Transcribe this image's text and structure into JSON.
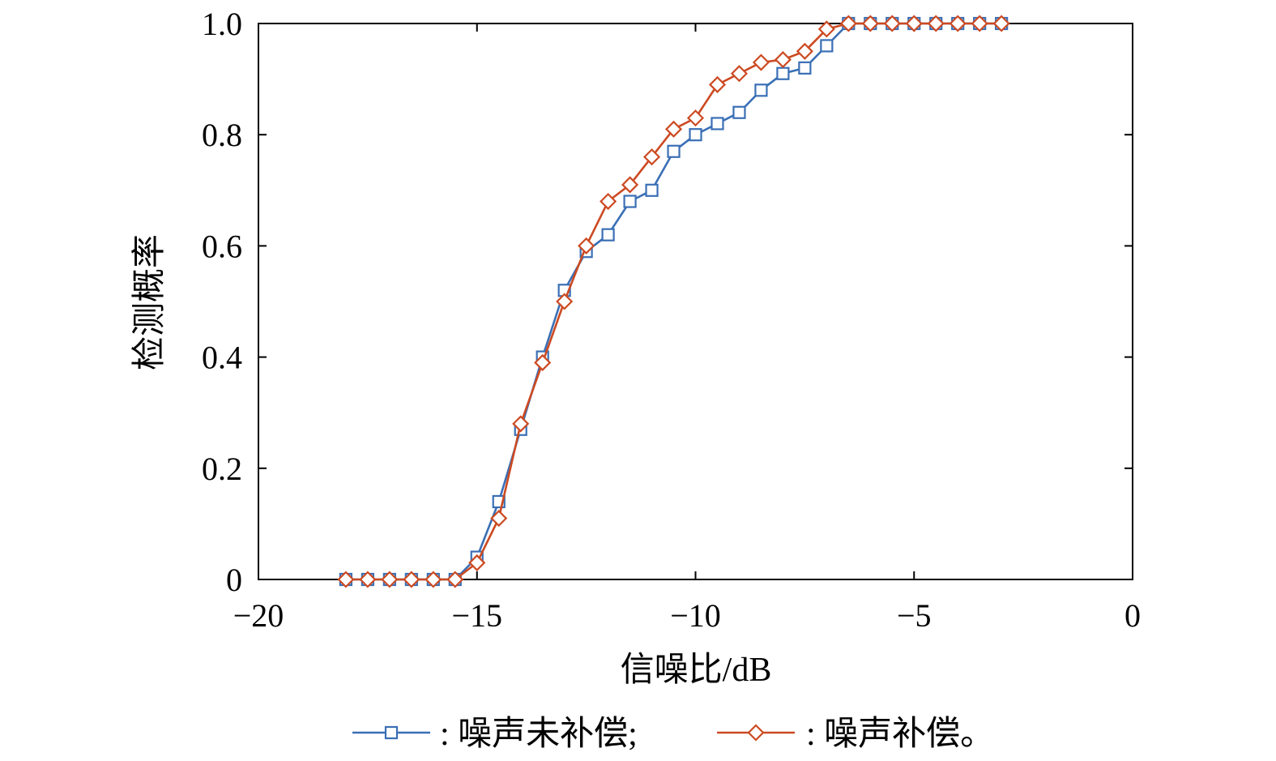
{
  "chart_data": {
    "type": "line",
    "xlabel": "信噪比/dB",
    "ylabel": "检测概率",
    "xlim": [
      -20,
      0
    ],
    "ylim": [
      0,
      1.0
    ],
    "x_ticks": [
      -20,
      -15,
      -10,
      -5,
      0
    ],
    "x_tick_labels": [
      "−20",
      "−15",
      "−10",
      "−5",
      "0"
    ],
    "y_ticks": [
      0,
      0.2,
      0.4,
      0.6,
      0.8,
      1.0
    ],
    "y_tick_labels": [
      "0",
      "0.2",
      "0.4",
      "0.6",
      "0.8",
      "1.0"
    ],
    "grid": false,
    "legend_position": "bottom",
    "x": [
      -18,
      -17.5,
      -17,
      -16.5,
      -16,
      -15.5,
      -15,
      -14.5,
      -14,
      -13.5,
      -13,
      -12.5,
      -12,
      -11.5,
      -11,
      -10.5,
      -10,
      -9.5,
      -9,
      -8.5,
      -8,
      -7.5,
      -7,
      -6.5,
      -6,
      -5.5,
      -5,
      -4.5,
      -4,
      -3.5,
      -3
    ],
    "series": [
      {
        "name": ": 噪声未补偿;",
        "color": "#3a6fb5",
        "marker": "square",
        "values": [
          0,
          0,
          0,
          0,
          0,
          0,
          0.04,
          0.14,
          0.27,
          0.4,
          0.52,
          0.59,
          0.62,
          0.68,
          0.7,
          0.77,
          0.8,
          0.82,
          0.84,
          0.88,
          0.91,
          0.92,
          0.96,
          1.0,
          1.0,
          1.0,
          1.0,
          1.0,
          1.0,
          1.0,
          1.0
        ]
      },
      {
        "name": ": 噪声补偿。",
        "color": "#cc4a22",
        "marker": "diamond",
        "values": [
          0,
          0,
          0,
          0,
          0,
          0,
          0.03,
          0.11,
          0.28,
          0.39,
          0.5,
          0.6,
          0.68,
          0.71,
          0.76,
          0.81,
          0.83,
          0.89,
          0.91,
          0.93,
          0.935,
          0.95,
          0.99,
          1.0,
          1.0,
          1.0,
          1.0,
          1.0,
          1.0,
          1.0,
          1.0
        ]
      }
    ]
  }
}
